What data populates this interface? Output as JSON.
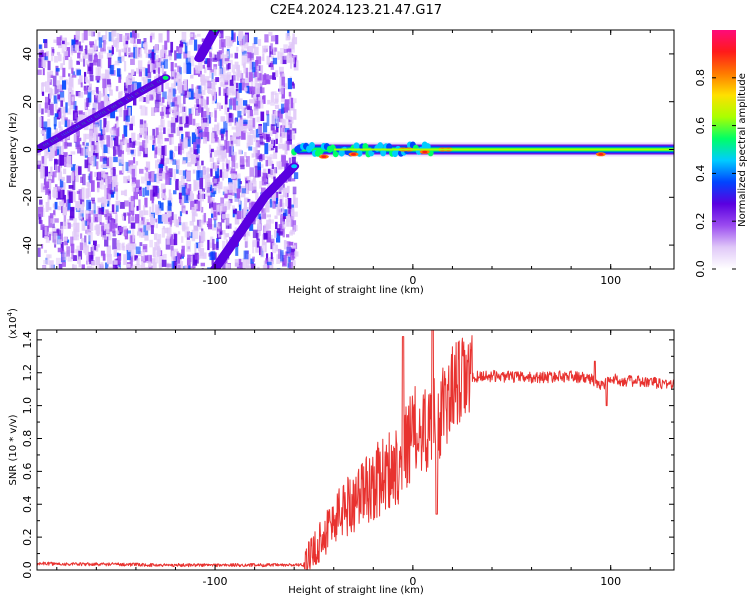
{
  "title": "C2E4.2024.123.21.47.G17",
  "colors": {
    "snr_line": "#e8322f",
    "cb_stops": [
      "#ffffff",
      "#e0c8f8",
      "#9b4cf0",
      "#5a00e0",
      "#0044ff",
      "#00ccff",
      "#00ff66",
      "#aaff00",
      "#ffe000",
      "#ff7a00",
      "#ff1a1a",
      "#ff0a7a"
    ]
  },
  "chart_data": [
    {
      "type": "heatmap",
      "title": "C2E4.2024.123.21.47.G17",
      "xlabel": "Height of straight line (km)",
      "ylabel": "Frequency (Hz)",
      "xlim": [
        -190,
        132
      ],
      "ylim": [
        -50,
        50
      ],
      "xticks": [
        -100,
        0,
        100
      ],
      "xtick_labels": [
        "-100",
        "0",
        "100"
      ],
      "yticks": [
        -40,
        -20,
        0,
        20,
        40
      ],
      "ytick_labels": [
        "-40",
        "-20",
        "0",
        "20",
        "40"
      ],
      "colorbar": {
        "label": "Normalized spectral amplitude",
        "range": [
          0,
          1
        ],
        "ticks": [
          0.0,
          0.2,
          0.4,
          0.6,
          0.8
        ],
        "tick_labels": [
          "0.0",
          "0.2",
          "0.4",
          "0.6",
          "0.8"
        ]
      },
      "features": {
        "noisy_region_x": [
          -190,
          -60
        ],
        "ridges": [
          {
            "x": [
              -190,
              -125
            ],
            "y": [
              0,
              30
            ]
          },
          {
            "x": [
              -108,
              -100
            ],
            "y": [
              38,
              50
            ]
          },
          {
            "x": [
              -100,
              -75
            ],
            "y": [
              -50,
              -20
            ]
          },
          {
            "x": [
              -75,
              -60
            ],
            "y": [
              -20,
              -7
            ]
          }
        ],
        "carrier_band_x": [
          -60,
          132
        ],
        "carrier_band_y": [
          -5,
          5
        ]
      }
    },
    {
      "type": "line",
      "xlabel": "Height of straight line (km)",
      "ylabel": "SNR (10 * v/v)",
      "y_multiplier": "(x10",
      "y_multiplier_exp": "4",
      "y_multiplier_close": ")",
      "xlim": [
        -190,
        132
      ],
      "ylim": [
        0,
        1.46
      ],
      "xticks": [
        -100,
        0,
        100
      ],
      "xtick_labels": [
        "-100",
        "0",
        "100"
      ],
      "yticks": [
        0.0,
        0.2,
        0.4,
        0.6,
        0.8,
        1.0,
        1.2,
        1.4
      ],
      "ytick_labels": [
        "0.0",
        "0.2",
        "0.4",
        "0.6",
        "0.8",
        "1.0",
        "1.2",
        "1.4"
      ],
      "series": [
        {
          "x": [
            -190,
            -170,
            -150,
            -130,
            -110,
            -90,
            -70,
            -55,
            -50,
            -45,
            -40,
            -35,
            -30,
            -25,
            -20,
            -15,
            -10,
            -5,
            0,
            5,
            10,
            15,
            20,
            25,
            30,
            35,
            40,
            60,
            80,
            90,
            95,
            100,
            110,
            120,
            132
          ],
          "y": [
            0.04,
            0.035,
            0.035,
            0.03,
            0.03,
            0.03,
            0.03,
            0.03,
            0.12,
            0.22,
            0.3,
            0.38,
            0.42,
            0.48,
            0.52,
            0.58,
            0.62,
            0.7,
            0.85,
            0.85,
            0.9,
            0.95,
            1.1,
            1.15,
            1.17,
            1.18,
            1.18,
            1.17,
            1.18,
            1.16,
            1.12,
            1.16,
            1.15,
            1.14,
            1.13
          ]
        }
      ]
    }
  ]
}
